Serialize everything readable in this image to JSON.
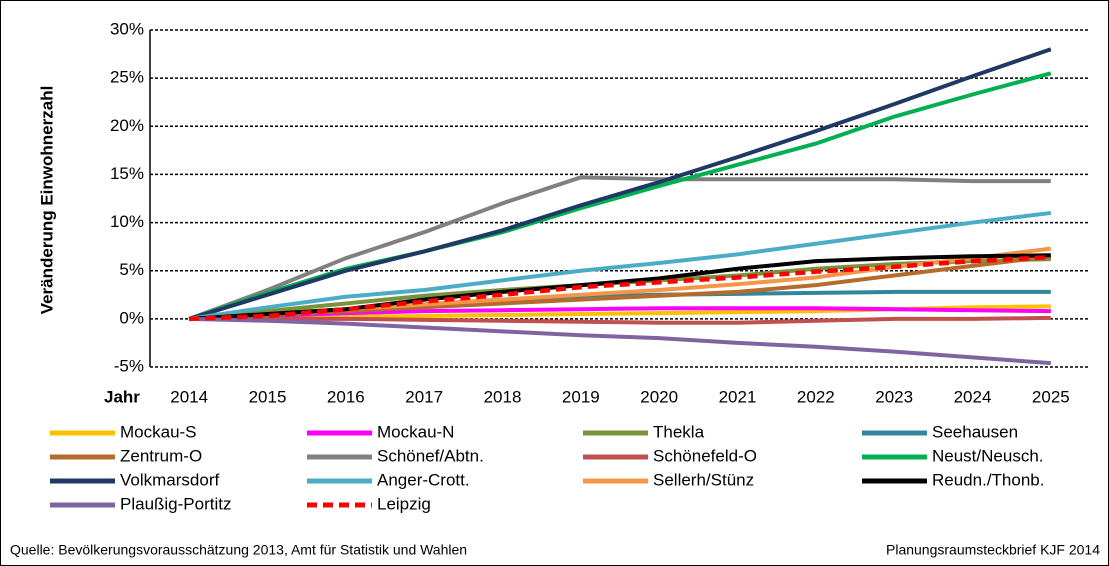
{
  "chart_data": {
    "type": "line",
    "y_label": "Veränderung Einwohnerzahl",
    "x_label": "Jahr",
    "source": "Quelle:  Bevölkerungsvorausschätzung 2013, Amt für Statistik und Wahlen",
    "note": "Planungsraumsteckbrief KJF 2014",
    "categories": [
      "2014",
      "2015",
      "2016",
      "2017",
      "2018",
      "2019",
      "2020",
      "2021",
      "2022",
      "2023",
      "2024",
      "2025"
    ],
    "ylim": [
      -5,
      30
    ],
    "yticks": [
      {
        "value": -5,
        "label": "-5%"
      },
      {
        "value": 0,
        "label": "0%"
      },
      {
        "value": 5,
        "label": "5%"
      },
      {
        "value": 10,
        "label": "10%"
      },
      {
        "value": 15,
        "label": "15%"
      },
      {
        "value": 20,
        "label": "20%"
      },
      {
        "value": 25,
        "label": "25%"
      },
      {
        "value": 30,
        "label": "30%"
      }
    ],
    "grid": true,
    "series": [
      {
        "name": "Mockau-S",
        "color": "#ffc000",
        "values": [
          0,
          0.1,
          0.2,
          0.3,
          0.4,
          0.5,
          0.6,
          0.7,
          0.8,
          1.0,
          1.2,
          1.3
        ]
      },
      {
        "name": "Mockau-N",
        "color": "#ff00ff",
        "values": [
          0,
          0.3,
          0.6,
          0.8,
          0.9,
          1.0,
          1.1,
          1.1,
          1.1,
          1.0,
          0.9,
          0.8
        ]
      },
      {
        "name": "Thekla",
        "color": "#77933c",
        "values": [
          0,
          0.8,
          1.6,
          2.4,
          3.0,
          3.5,
          4.0,
          4.5,
          5.2,
          5.7,
          6.0,
          6.2
        ]
      },
      {
        "name": "Seehausen",
        "color": "#31859c",
        "values": [
          0,
          0.5,
          1.0,
          1.5,
          2.0,
          2.3,
          2.5,
          2.6,
          2.7,
          2.8,
          2.8,
          2.8
        ]
      },
      {
        "name": "Zentrum-O",
        "color": "#b46b2c",
        "values": [
          0,
          0.4,
          0.8,
          1.2,
          1.6,
          2.0,
          2.4,
          2.8,
          3.5,
          4.5,
          5.5,
          6.5
        ]
      },
      {
        "name": "Schönef/Abtn.",
        "color": "#808080",
        "values": [
          0,
          3.0,
          6.3,
          9.0,
          12.0,
          14.7,
          14.5,
          14.5,
          14.5,
          14.5,
          14.3,
          14.3
        ]
      },
      {
        "name": "Schönefeld-O",
        "color": "#c0504d",
        "values": [
          0,
          0,
          0,
          -0.1,
          -0.2,
          -0.3,
          -0.4,
          -0.4,
          -0.2,
          0,
          0,
          0.1
        ]
      },
      {
        "name": "Neust/Neusch.",
        "color": "#00b050",
        "values": [
          0,
          2.7,
          5.2,
          7.0,
          9.0,
          11.5,
          13.8,
          16.0,
          18.2,
          21.0,
          23.3,
          25.5
        ]
      },
      {
        "name": "Volkmarsdorf",
        "color": "#1f3864",
        "values": [
          0,
          2.5,
          5.0,
          7.0,
          9.2,
          11.8,
          14.2,
          16.8,
          19.5,
          22.3,
          25.2,
          28.0
        ]
      },
      {
        "name": "Anger-Crott.",
        "color": "#4bacc6",
        "values": [
          0,
          1.2,
          2.3,
          3.0,
          4.0,
          5.0,
          5.8,
          6.7,
          7.8,
          8.9,
          10.0,
          11.0
        ]
      },
      {
        "name": "Sellerh/Stünz",
        "color": "#f79646",
        "values": [
          0,
          0.5,
          1.0,
          1.5,
          2.0,
          2.5,
          3.0,
          3.6,
          4.3,
          5.4,
          6.3,
          7.3
        ]
      },
      {
        "name": "Reudn./Thonb.",
        "color": "#000000",
        "values": [
          0,
          0.5,
          1.0,
          2.0,
          2.8,
          3.5,
          4.2,
          5.2,
          6.0,
          6.3,
          6.5,
          6.6
        ]
      },
      {
        "name": "Plaußig-Portitz",
        "color": "#8064a2",
        "values": [
          0,
          -0.2,
          -0.5,
          -0.9,
          -1.3,
          -1.7,
          -2.0,
          -2.5,
          -2.9,
          -3.4,
          -4.0,
          -4.6
        ]
      },
      {
        "name": "Leipzig",
        "color": "#ff0000",
        "style": "dashed",
        "values": [
          0,
          0.3,
          1.0,
          1.8,
          2.5,
          3.3,
          3.8,
          4.3,
          4.9,
          5.4,
          6.0,
          6.4
        ]
      }
    ]
  }
}
